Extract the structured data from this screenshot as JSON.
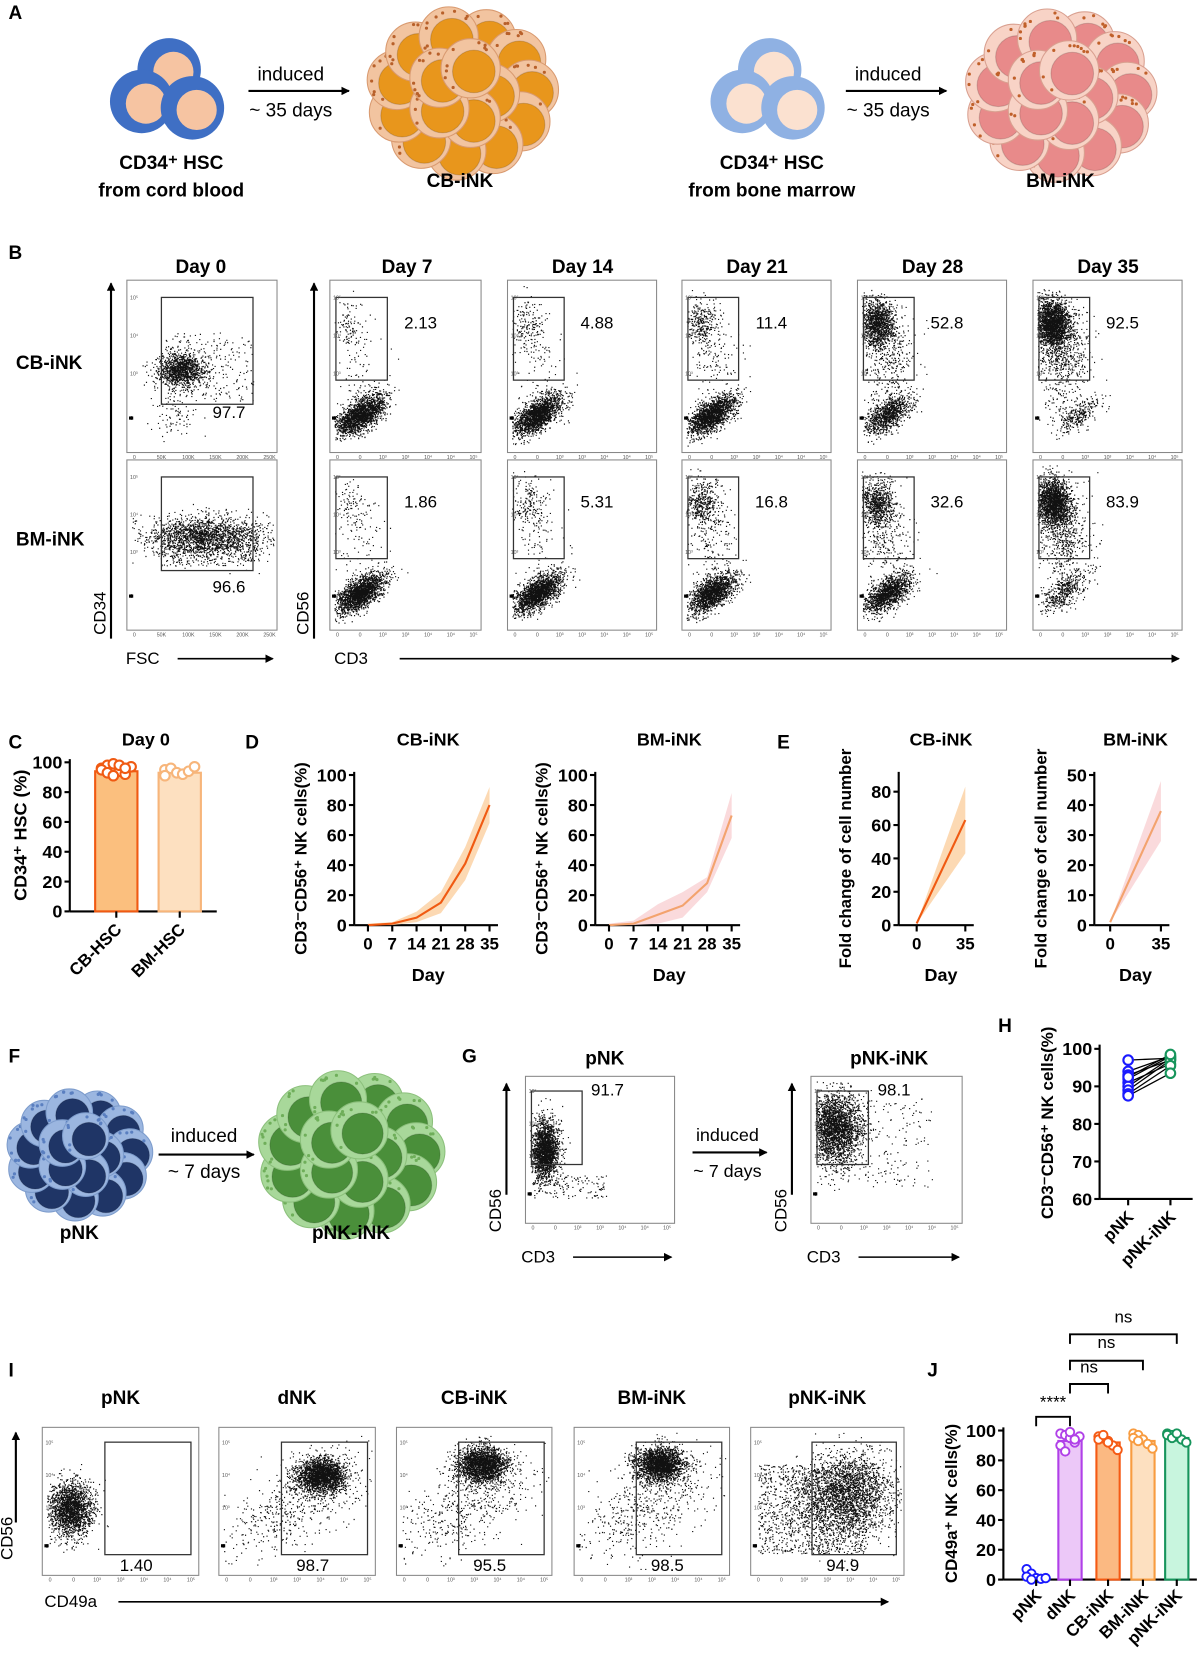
{
  "panel_labels": [
    "A",
    "B",
    "C",
    "D",
    "E",
    "F",
    "G",
    "H",
    "I",
    "J"
  ],
  "panel_a": {
    "left": {
      "source_line1": "CD34⁺ HSC",
      "source_line2": "from cord blood",
      "arrow_top": "induced",
      "arrow_bottom": "~ 35 days",
      "product": "CB-iNK"
    },
    "right": {
      "source_line1": "CD34⁺ HSC",
      "source_line2": "from bone marrow",
      "arrow_top": "induced",
      "arrow_bottom": "~ 35 days",
      "product": "BM-iNK"
    },
    "colors": {
      "cb_hsc": "#3f6fc4",
      "bm_hsc": "#8fb1e3",
      "cb_ink": "#e8961c",
      "bm_ink": "#e88a8a"
    }
  },
  "panel_b": {
    "days": [
      "Day 0",
      "Day 7",
      "Day 14",
      "Day 21",
      "Day 28",
      "Day 35"
    ],
    "rows": [
      {
        "label": "CB-iNK",
        "values": [
          "97.7",
          "2.13",
          "4.88",
          "11.4",
          "52.8",
          "92.5"
        ]
      },
      {
        "label": "BM-iNK",
        "values": [
          "96.6",
          "1.86",
          "5.31",
          "16.8",
          "32.6",
          "83.9"
        ]
      }
    ],
    "axes": {
      "y_left": "CD34",
      "x_left": "FSC",
      "y_right": "CD56",
      "x_right": "CD3"
    },
    "ticks_log_y": [
      "10⁵",
      "10⁴",
      "10³",
      "0"
    ],
    "ticks_log_x": [
      "0",
      "10³",
      "10⁴",
      "10⁵"
    ],
    "ticks_fsc": [
      "0",
      "50K",
      "100K",
      "150K",
      "200K",
      "250K"
    ]
  },
  "panel_f": {
    "source": "pNK",
    "product": "pNK-iNK",
    "arrow_top": "induced",
    "arrow_bottom": "~ 7 days",
    "colors": {
      "pnk": "#1f3566",
      "pnk_ink": "#4a8f3a"
    }
  },
  "panel_g": {
    "plots": [
      {
        "title": "pNK",
        "value": "91.7"
      },
      {
        "title": "pNK-iNK",
        "value": "98.1"
      }
    ],
    "arrow_top": "induced",
    "arrow_bottom": "~ 7 days",
    "y_axis": "CD56",
    "x_axis": "CD3"
  },
  "panel_i": {
    "plots": [
      {
        "title": "pNK",
        "value": "1.40"
      },
      {
        "title": "dNK",
        "value": "98.7"
      },
      {
        "title": "CB-iNK",
        "value": "95.5"
      },
      {
        "title": "BM-iNK",
        "value": "98.5"
      },
      {
        "title": "pNK-iNK",
        "value": "94.9"
      }
    ],
    "y_axis": "CD56",
    "x_axis": "CD49a"
  },
  "chart_data": [
    {
      "panel": "C",
      "type": "bar",
      "title": "Day 0",
      "ylabel": "CD34⁺ HSC (%)",
      "xlabel": "",
      "ylim": [
        0,
        100
      ],
      "yticks": [
        "0",
        "20",
        "40",
        "60",
        "80",
        "100"
      ],
      "categories": [
        "CB-HSC",
        "BM-HSC"
      ],
      "values": [
        94,
        93
      ],
      "points": [
        [
          96,
          98,
          99,
          94,
          92,
          97,
          95,
          93,
          91,
          98,
          96
        ],
        [
          95,
          96,
          93,
          92,
          94,
          97,
          91
        ]
      ],
      "colors": [
        {
          "fill": "#fbbf7e",
          "stroke": "#f05a12"
        },
        {
          "fill": "#fde0c0",
          "stroke": "#f7b57a"
        }
      ]
    },
    {
      "panel": "D",
      "type": "line",
      "title": "CB-iNK",
      "ylabel": "CD3⁻CD56⁺ NK cells(%)",
      "xlabel": "Day",
      "ylim": [
        0,
        100
      ],
      "yticks": [
        "0",
        "20",
        "40",
        "60",
        "80",
        "100"
      ],
      "xticks": [
        "0",
        "7",
        "14",
        "21",
        "28",
        "35"
      ],
      "x": [
        0,
        7,
        14,
        21,
        28,
        35
      ],
      "y": [
        0,
        1,
        5,
        15,
        41,
        80
      ],
      "lower": [
        0,
        0,
        2,
        8,
        30,
        68
      ],
      "upper": [
        1,
        2,
        9,
        22,
        52,
        92
      ],
      "color": "#f05a12",
      "band_color": "#fbd2a6"
    },
    {
      "panel": "D",
      "type": "line",
      "title": "BM-iNK",
      "ylabel": "CD3⁻CD56⁺ NK cells(%)",
      "xlabel": "Day",
      "ylim": [
        0,
        100
      ],
      "yticks": [
        "0",
        "20",
        "40",
        "60",
        "80",
        "100"
      ],
      "xticks": [
        "0",
        "7",
        "14",
        "21",
        "28",
        "35"
      ],
      "x": [
        0,
        7,
        14,
        21,
        28,
        35
      ],
      "y": [
        0,
        1,
        7,
        13,
        28,
        73
      ],
      "lower": [
        0,
        0,
        1,
        5,
        22,
        58
      ],
      "upper": [
        1,
        3,
        14,
        22,
        32,
        88
      ],
      "color": "#f3a36e",
      "band_color": "#f9d3d6"
    },
    {
      "panel": "E",
      "type": "line",
      "title": "CB-iNK",
      "ylabel": "Fold change of cell number",
      "xlabel": "Day",
      "ylim": [
        0,
        90
      ],
      "yticks": [
        "0",
        "20",
        "40",
        "60",
        "80"
      ],
      "xticks": [
        "0",
        "35"
      ],
      "x": [
        0,
        35
      ],
      "y": [
        1,
        63
      ],
      "lower": [
        1,
        43
      ],
      "upper": [
        1,
        83
      ],
      "color": "#f05a12",
      "band_color": "#fbd2a6"
    },
    {
      "panel": "E",
      "type": "line",
      "title": "BM-iNK",
      "ylabel": "Fold change of cell number",
      "xlabel": "Day",
      "ylim": [
        0,
        50
      ],
      "yticks": [
        "0",
        "10",
        "20",
        "30",
        "40",
        "50"
      ],
      "xticks": [
        "0",
        "35"
      ],
      "x": [
        0,
        35
      ],
      "y": [
        1,
        38
      ],
      "lower": [
        1,
        28
      ],
      "upper": [
        1,
        48
      ],
      "color": "#f3a36e",
      "band_color": "#f9d3d6"
    },
    {
      "panel": "H",
      "type": "scatter",
      "title": "",
      "ylabel": "CD3⁻CD56⁺ NK cells(%)",
      "xlabel": "",
      "ylim": [
        60,
        100
      ],
      "yticks": [
        "60",
        "70",
        "80",
        "90",
        "100"
      ],
      "categories": [
        "pNK",
        "pNK-iNK"
      ],
      "pairs": [
        [
          97,
          97.5
        ],
        [
          94,
          98
        ],
        [
          93,
          97
        ],
        [
          92,
          98
        ],
        [
          91,
          96
        ],
        [
          90,
          97.5
        ],
        [
          89,
          97
        ],
        [
          88,
          95.5
        ],
        [
          87.5,
          93.5
        ],
        [
          92.5,
          98.5
        ]
      ],
      "colors": [
        "#1a1aff",
        "#17955c"
      ]
    },
    {
      "panel": "J",
      "type": "bar",
      "title": "",
      "ylabel": "CD49a⁺ NK cells(%)",
      "xlabel": "",
      "ylim": [
        0,
        100
      ],
      "yticks": [
        "0",
        "20",
        "40",
        "60",
        "80",
        "100"
      ],
      "categories": [
        "pNK",
        "dNK",
        "CB-iNK",
        "BM-iNK",
        "pNK-iNK"
      ],
      "values": [
        2,
        93,
        92,
        93,
        95
      ],
      "points": [
        [
          7,
          4,
          1,
          0.5,
          1,
          2,
          0
        ],
        [
          98,
          97,
          95,
          92,
          96,
          90,
          86,
          99,
          94
        ],
        [
          96,
          95,
          93,
          90,
          87,
          94,
          97,
          92
        ],
        [
          98,
          97,
          94,
          91,
          88,
          95,
          93
        ],
        [
          98,
          97,
          96,
          94,
          92,
          97,
          95,
          98
        ]
      ],
      "colors": [
        {
          "fill": "#ffffff",
          "stroke": "#1a1aff"
        },
        {
          "fill": "#ecc8f8",
          "stroke": "#b040e8"
        },
        {
          "fill": "#fbb982",
          "stroke": "#f55a14"
        },
        {
          "fill": "#fde0c0",
          "stroke": "#f89c40"
        },
        {
          "fill": "#c8f5de",
          "stroke": "#17955c"
        }
      ],
      "significance": [
        {
          "from": "pNK",
          "to": "dNK",
          "label": "****"
        },
        {
          "from": "dNK",
          "to": "CB-iNK",
          "label": "ns"
        },
        {
          "from": "dNK",
          "to": "BM-iNK",
          "label": "ns"
        },
        {
          "from": "dNK",
          "to": "pNK-iNK",
          "label": "ns"
        }
      ]
    }
  ]
}
